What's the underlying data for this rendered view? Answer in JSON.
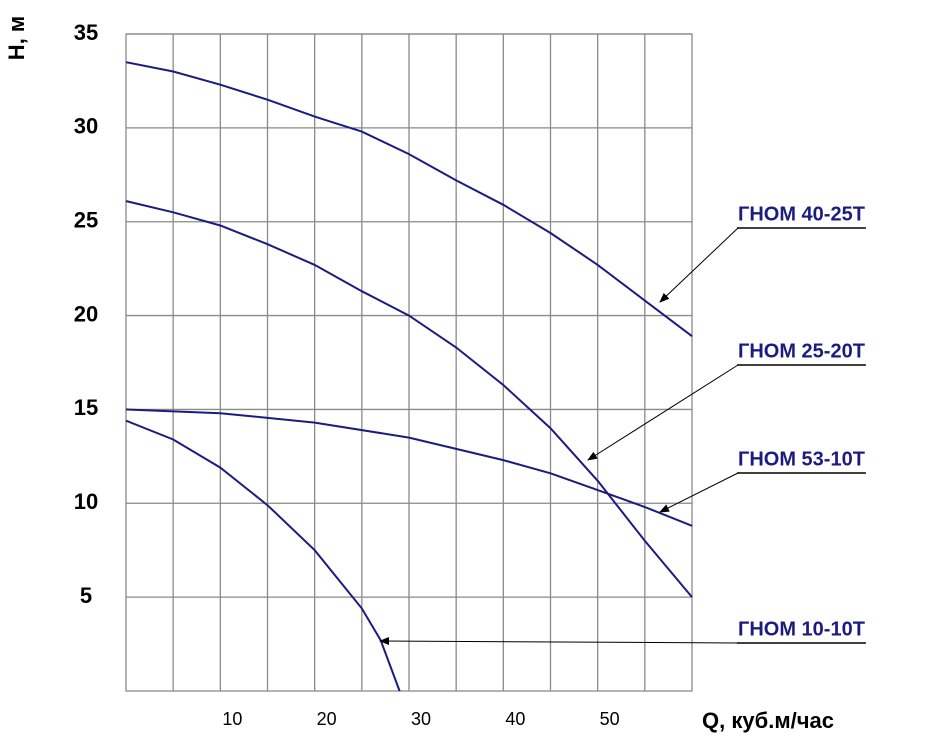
{
  "chart_data": {
    "type": "line",
    "x_label": "Q, куб.м/час",
    "y_label": "H, м",
    "xlim": [
      0,
      60
    ],
    "ylim": [
      0,
      35
    ],
    "xticks": [
      10,
      20,
      30,
      40,
      50
    ],
    "minor_xticks": [
      5,
      15,
      25,
      35,
      45,
      55
    ],
    "yticks": [
      5,
      10,
      15,
      20,
      25,
      30,
      35
    ],
    "grid": true,
    "series": [
      {
        "name": "ГНОМ 40-25Т",
        "color": "#1c1c80",
        "x": [
          0,
          5,
          10,
          15,
          20,
          25,
          30,
          35,
          40,
          45,
          50,
          55,
          60
        ],
        "values": [
          33.5,
          33.0,
          32.3,
          31.5,
          30.6,
          29.8,
          28.6,
          27.2,
          25.9,
          24.4,
          22.7,
          20.8,
          18.9
        ]
      },
      {
        "name": "ГНОМ 25-20Т",
        "color": "#1c1c80",
        "x": [
          0,
          5,
          10,
          15,
          20,
          25,
          30,
          35,
          40,
          45,
          50,
          55,
          60
        ],
        "values": [
          26.1,
          25.5,
          24.8,
          23.8,
          22.7,
          21.3,
          20.0,
          18.3,
          16.3,
          14.0,
          11.2,
          8.0,
          5.0
        ]
      },
      {
        "name": "ГНОМ 53-10Т",
        "color": "#1c1c80",
        "x": [
          0,
          10,
          20,
          30,
          40,
          45,
          50,
          55,
          60
        ],
        "values": [
          15.0,
          14.8,
          14.3,
          13.5,
          12.3,
          11.6,
          10.7,
          9.8,
          8.8
        ]
      },
      {
        "name": "ГНОМ 10-10Т",
        "color": "#1c1c80",
        "x": [
          0,
          5,
          10,
          15,
          20,
          25,
          27,
          29
        ],
        "values": [
          14.4,
          13.4,
          11.9,
          9.9,
          7.5,
          4.4,
          2.7,
          0
        ]
      }
    ]
  }
}
